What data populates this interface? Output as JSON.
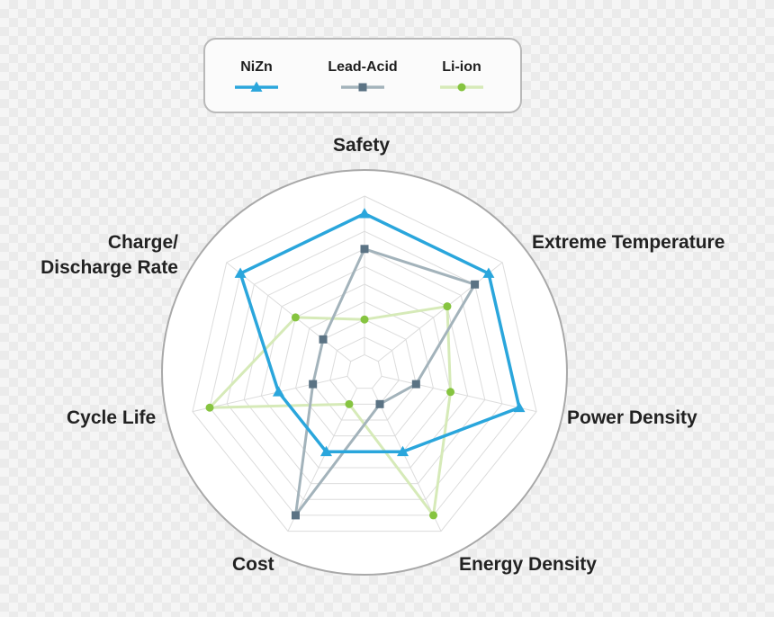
{
  "chart_data": {
    "type": "radar",
    "axes": [
      "Safety",
      "Extreme Temperature",
      "Power Density",
      "Energy Density",
      "Cost",
      "Cycle Life",
      "Charge/\nDischarge Rate"
    ],
    "rlim": [
      0,
      10
    ],
    "grid": true,
    "legend_position": "top",
    "series": [
      {
        "name": "NiZn",
        "color": "#2aa6dc",
        "marker": "triangle",
        "values": [
          9,
          9,
          9,
          5,
          5,
          5,
          9
        ]
      },
      {
        "name": "Lead-Acid",
        "color": "#5b7384",
        "line_color": "#a3b3bb",
        "marker": "square",
        "values": [
          7,
          8,
          3,
          2,
          9,
          3,
          3
        ]
      },
      {
        "name": "Li-ion",
        "color": "#86c440",
        "line_color": "#d6eab8",
        "marker": "circle",
        "values": [
          3,
          6,
          5,
          9,
          2,
          9,
          5
        ]
      }
    ]
  }
}
